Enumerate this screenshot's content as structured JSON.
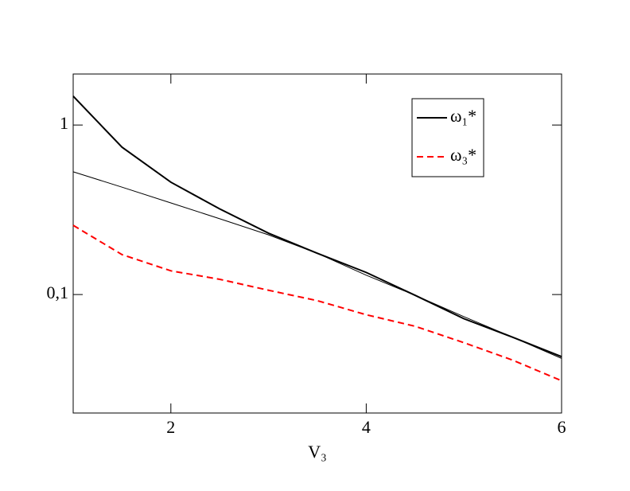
{
  "chart_data": {
    "type": "line",
    "x_label": "V₃",
    "x": [
      1,
      1.5,
      2,
      2.5,
      3,
      3.5,
      4,
      4.5,
      5,
      5.5,
      6
    ],
    "series": [
      {
        "name": "ω₁*",
        "color": "#000000",
        "width": 2,
        "dash": "solid",
        "values": [
          1.48,
          0.74,
          0.46,
          0.32,
          0.23,
          0.175,
          0.135,
          0.099,
          0.072,
          0.056,
          0.043
        ]
      },
      {
        "color": "#000000",
        "width": 1,
        "dash": "solid",
        "values": [
          0.53,
          0.43,
          0.347,
          0.28,
          0.225,
          0.175,
          0.13,
          0.099,
          0.074,
          0.056,
          0.042
        ]
      },
      {
        "name": "ω₃*",
        "color": "#ff0000",
        "width": 2,
        "dash": "dashed",
        "values": [
          0.256,
          0.172,
          0.138,
          0.123,
          0.106,
          0.092,
          0.076,
          0.065,
          0.052,
          0.041,
          0.031
        ]
      }
    ],
    "xlim": [
      1,
      6
    ],
    "xticks": [
      2,
      4,
      6
    ],
    "ylim": [
      0.02,
      2
    ],
    "yticks": [
      {
        "value": 0.1,
        "label": "0,1"
      },
      1
    ],
    "log_y": true,
    "grid": false,
    "legend": "upper right"
  }
}
